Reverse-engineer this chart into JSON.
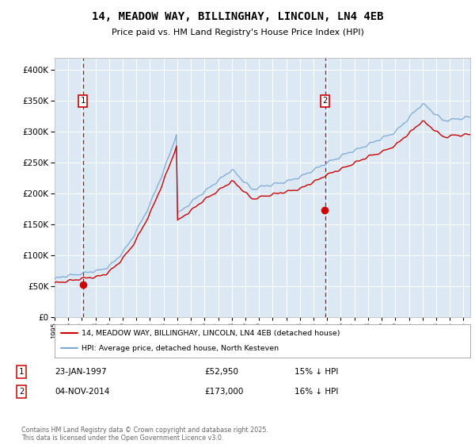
{
  "title": "14, MEADOW WAY, BILLINGHAY, LINCOLN, LN4 4EB",
  "subtitle": "Price paid vs. HM Land Registry's House Price Index (HPI)",
  "bg_color": "#dce9f5",
  "plot_bg_color": "#dce9f5",
  "hpi_color": "#7aa8d4",
  "price_color": "#cc0000",
  "vline_color": "#cc0000",
  "sale1_date": 1997.07,
  "sale1_price": 52950,
  "sale2_date": 2014.84,
  "sale2_price": 173000,
  "legend_line1": "14, MEADOW WAY, BILLINGHAY, LINCOLN, LN4 4EB (detached house)",
  "legend_line2": "HPI: Average price, detached house, North Kesteven",
  "annot1": "23-JAN-1997",
  "annot1_price": "£52,950",
  "annot1_hpi": "15% ↓ HPI",
  "annot2": "04-NOV-2014",
  "annot2_price": "£173,000",
  "annot2_hpi": "16% ↓ HPI",
  "footer": "Contains HM Land Registry data © Crown copyright and database right 2025.\nThis data is licensed under the Open Government Licence v3.0.",
  "ylim": [
    0,
    420000
  ],
  "xlim_start": 1995.0,
  "xlim_end": 2025.5
}
